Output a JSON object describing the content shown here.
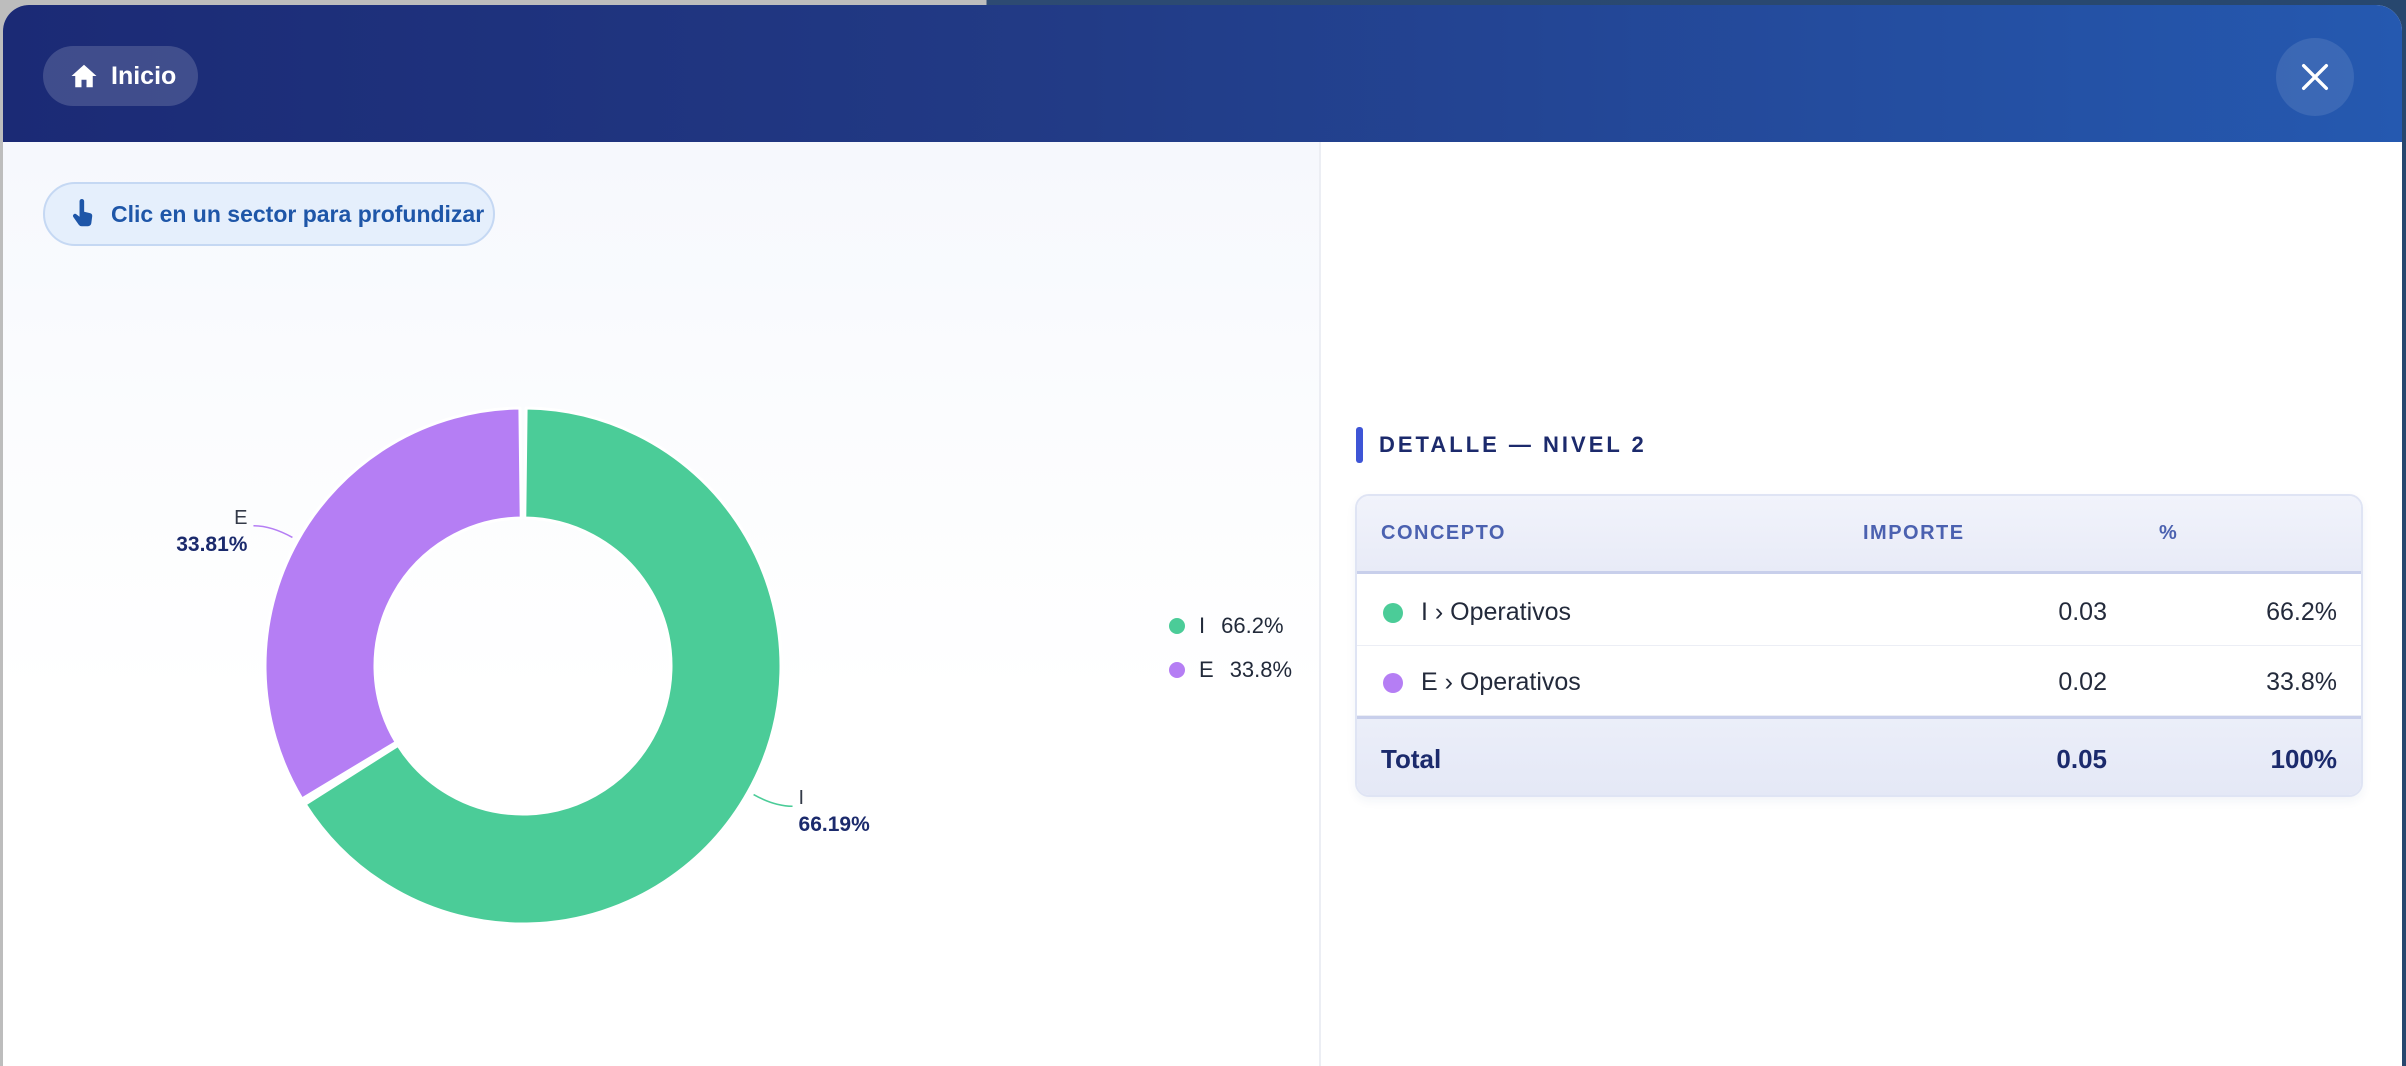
{
  "header": {
    "home_label": "Inicio",
    "close_icon": "close-icon",
    "home_icon": "home-icon"
  },
  "hint": {
    "text": "Clic en un sector para profundizar",
    "icon": "pointer-hand-icon"
  },
  "chart_data": {
    "type": "pie",
    "donut": true,
    "slices": [
      {
        "label": "I",
        "value": 66.19,
        "percent_label": "66.19%",
        "legend_text": "66.2%",
        "color": "#4bcc98"
      },
      {
        "label": "E",
        "value": 33.81,
        "percent_label": "33.81%",
        "legend_text": "33.8%",
        "color": "#b57ef4"
      }
    ],
    "legend_position": "right"
  },
  "detail": {
    "title": "DETALLE — NIVEL 2",
    "columns": {
      "concept": "CONCEPTO",
      "amount": "IMPORTE",
      "pct": "%"
    },
    "rows": [
      {
        "color": "#4bcc98",
        "concept": "I › Operativos",
        "amount": "0.03",
        "pct": "66.2%"
      },
      {
        "color": "#b57ef4",
        "concept": "E › Operativos",
        "amount": "0.02",
        "pct": "33.8%"
      }
    ],
    "total": {
      "label": "Total",
      "amount": "0.05",
      "pct": "100%"
    }
  }
}
